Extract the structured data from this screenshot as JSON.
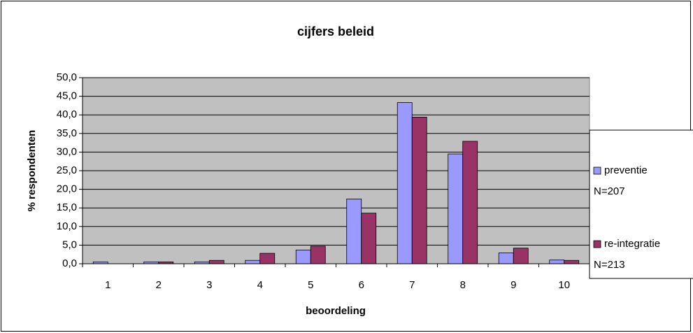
{
  "chart_data": {
    "type": "bar",
    "title": "cijfers beleid",
    "x_label": "beoordeling",
    "y_label": "% respondenten",
    "categories": [
      "1",
      "2",
      "3",
      "4",
      "5",
      "6",
      "7",
      "8",
      "9",
      "10"
    ],
    "series": [
      {
        "name": "preventie",
        "n": "N=207",
        "color": "#9999ff",
        "values": [
          0.5,
          0.5,
          0.5,
          0.9,
          3.7,
          17.4,
          43.3,
          29.5,
          2.9,
          1.0
        ]
      },
      {
        "name": "re-integratie",
        "n": "N=213",
        "color": "#993366",
        "values": [
          0,
          0.5,
          0.9,
          2.8,
          4.7,
          13.6,
          39.4,
          32.9,
          4.2,
          0.9
        ]
      }
    ],
    "ylim": [
      0,
      50
    ],
    "yticks": [
      {
        "value": 0,
        "label": "0,0"
      },
      {
        "value": 5,
        "label": "5,0"
      },
      {
        "value": 10,
        "label": "10,0"
      },
      {
        "value": 15,
        "label": "15,0"
      },
      {
        "value": 20,
        "label": "20,0"
      },
      {
        "value": 25,
        "label": "25,0"
      },
      {
        "value": 30,
        "label": "30,0"
      },
      {
        "value": 35,
        "label": "35,0"
      },
      {
        "value": 40,
        "label": "40,0"
      },
      {
        "value": 45,
        "label": "45,0"
      },
      {
        "value": 50,
        "label": "50,0"
      }
    ],
    "grid": true,
    "plot_background": "#c0c0c0",
    "legend": "right"
  }
}
